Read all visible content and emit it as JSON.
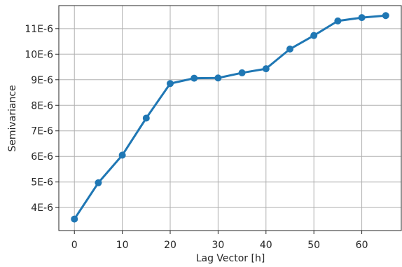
{
  "chart_data": {
    "type": "line",
    "title": "",
    "xlabel": "Lag Vector [h]",
    "ylabel": "Semivariance",
    "xlim": [
      -3.25,
      68.25
    ],
    "ylim": [
      3.1e-06,
      1.19e-05
    ],
    "xticks": [
      0,
      10,
      20,
      30,
      40,
      50,
      60
    ],
    "yticks": [
      {
        "value": 4e-06,
        "label": "4E-6"
      },
      {
        "value": 5e-06,
        "label": "5E-6"
      },
      {
        "value": 6e-06,
        "label": "6E-6"
      },
      {
        "value": 7e-06,
        "label": "7E-6"
      },
      {
        "value": 8e-06,
        "label": "8E-6"
      },
      {
        "value": 9e-06,
        "label": "9E-6"
      },
      {
        "value": 1e-05,
        "label": "10E-6"
      },
      {
        "value": 1.1e-05,
        "label": "11E-6"
      }
    ],
    "grid": true,
    "series": [
      {
        "color": "#1f77b4",
        "x": [
          0,
          5,
          10,
          15,
          20,
          25,
          30,
          35,
          40,
          45,
          50,
          55,
          60,
          65
        ],
        "y": [
          3.55e-06,
          4.97e-06,
          6.05e-06,
          7.5e-06,
          8.85e-06,
          9.06e-06,
          9.07e-06,
          9.27e-06,
          9.43e-06,
          1.02e-05,
          1.073e-05,
          1.13e-05,
          1.143e-05,
          1.151e-05
        ]
      }
    ]
  }
}
